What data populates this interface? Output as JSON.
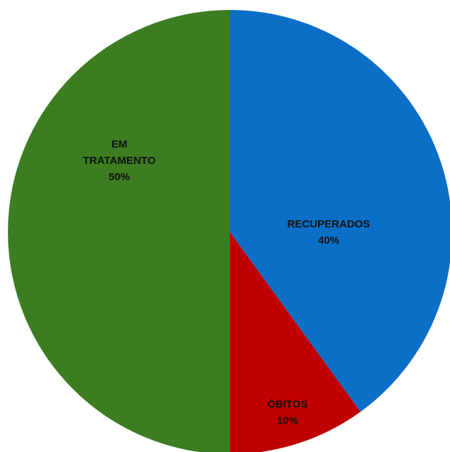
{
  "chart_data": {
    "type": "pie",
    "title": "",
    "start_angle_deg": 0,
    "direction": "clockwise",
    "slices": [
      {
        "label_lines": [
          "RECUPERADOS"
        ],
        "percent_label": "40%",
        "value": 40,
        "color": "#0B6FC8"
      },
      {
        "label_lines": [
          "ÓBITOS"
        ],
        "percent_label": "10%",
        "value": 10,
        "color": "#C00000"
      },
      {
        "label_lines": [
          "EM",
          "TRATAMENTO"
        ],
        "percent_label": "50%",
        "value": 50,
        "color": "#3C7D22"
      }
    ],
    "legend": "none",
    "data_labels": "inside"
  }
}
